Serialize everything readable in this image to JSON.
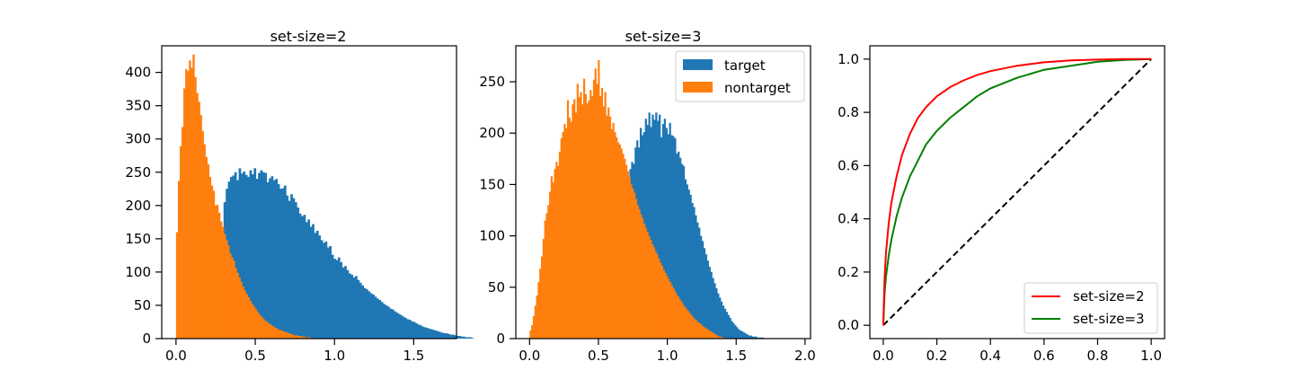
{
  "colors": {
    "target": "#1f77b4",
    "nontarget": "#ff7f0e",
    "roc_set2": "#ff0000",
    "roc_set3": "#008000",
    "chance": "#000000"
  },
  "chart_data": [
    {
      "type": "histogram",
      "title": "set-size=2",
      "xlabel": "",
      "ylabel": "",
      "xlim": [
        -0.09,
        1.77
      ],
      "ylim": [
        0,
        440
      ],
      "xticks": [
        0.0,
        0.5,
        1.0,
        1.5
      ],
      "xtick_labels": [
        "0.0",
        "0.5",
        "1.0",
        "1.5"
      ],
      "yticks": [
        0,
        50,
        100,
        150,
        200,
        250,
        300,
        350,
        400
      ],
      "ytick_labels": [
        "0",
        "50",
        "100",
        "150",
        "200",
        "250",
        "300",
        "350",
        "400"
      ],
      "legend": null,
      "series": [
        {
          "name": "target",
          "bin_start": 0.3,
          "bin_width": 0.0136,
          "values": [
            205,
            225,
            236,
            243,
            245,
            250,
            238,
            256,
            248,
            251,
            246,
            243,
            253,
            247,
            256,
            240,
            249,
            253,
            250,
            249,
            235,
            241,
            244,
            238,
            240,
            232,
            225,
            226,
            230,
            215,
            207,
            217,
            211,
            205,
            197,
            188,
            184,
            186,
            175,
            179,
            168,
            172,
            159,
            162,
            155,
            148,
            144,
            146,
            137,
            139,
            126,
            120,
            118,
            122,
            115,
            107,
            109,
            103,
            98,
            96,
            92,
            94,
            88,
            84,
            80,
            76,
            74,
            71,
            68,
            66,
            63,
            60,
            58,
            55,
            52,
            50,
            48,
            45,
            44,
            41,
            39,
            37,
            35,
            33,
            31,
            29,
            28,
            26,
            25,
            23,
            21,
            20,
            18,
            17,
            16,
            15,
            14,
            13,
            12,
            11,
            10,
            9,
            8,
            8,
            7,
            6,
            6,
            5,
            4,
            4,
            3,
            3,
            2,
            2,
            2,
            1
          ]
        },
        {
          "name": "nontarget",
          "bin_start": 0.0,
          "bin_width": 0.0116,
          "values": [
            160,
            237,
            289,
            318,
            376,
            405,
            402,
            418,
            407,
            427,
            393,
            369,
            356,
            336,
            312,
            292,
            273,
            262,
            243,
            230,
            222,
            200,
            201,
            189,
            176,
            168,
            157,
            148,
            140,
            128,
            122,
            117,
            106,
            99,
            92,
            85,
            78,
            72,
            67,
            62,
            57,
            52,
            48,
            44,
            40,
            36,
            33,
            30,
            27,
            25,
            23,
            21,
            19,
            17,
            16,
            14,
            13,
            12,
            11,
            10,
            9,
            8,
            7,
            6,
            5,
            5,
            4,
            4,
            3,
            3,
            2,
            2,
            2,
            1,
            1
          ]
        }
      ]
    },
    {
      "type": "histogram",
      "title": "set-size=3",
      "xlabel": "",
      "ylabel": "",
      "xlim": [
        -0.1,
        2.04
      ],
      "ylim": [
        0,
        285
      ],
      "xticks": [
        0.0,
        0.5,
        1.0,
        1.5,
        2.0
      ],
      "xtick_labels": [
        "0.0",
        "0.5",
        "1.0",
        "1.5",
        "2.0"
      ],
      "yticks": [
        0,
        50,
        100,
        150,
        200,
        250
      ],
      "ytick_labels": [
        "0",
        "50",
        "100",
        "150",
        "200",
        "250"
      ],
      "legend": {
        "position": "upper right",
        "entries": [
          "target",
          "nontarget"
        ]
      },
      "series": [
        {
          "name": "target",
          "bin_start": 0.7,
          "bin_width": 0.0125,
          "values": [
            150,
            152,
            165,
            172,
            170,
            186,
            193,
            186,
            205,
            198,
            201,
            214,
            208,
            220,
            206,
            218,
            213,
            220,
            212,
            218,
            196,
            209,
            214,
            205,
            199,
            210,
            198,
            197,
            195,
            180,
            182,
            176,
            170,
            168,
            155,
            150,
            145,
            140,
            132,
            128,
            120,
            113,
            108,
            100,
            95,
            88,
            82,
            76,
            70,
            65,
            59,
            54,
            49,
            44,
            40,
            36,
            32,
            29,
            26,
            23,
            20,
            17,
            15,
            13,
            11,
            9,
            8,
            7,
            6,
            5,
            4,
            3,
            3,
            2,
            2,
            2,
            1,
            1,
            1,
            1
          ]
        },
        {
          "name": "nontarget",
          "bin_start": 0.0,
          "bin_width": 0.0118,
          "values": [
            8,
            13,
            22,
            32,
            42,
            55,
            68,
            80,
            97,
            115,
            122,
            130,
            143,
            158,
            152,
            165,
            172,
            168,
            182,
            195,
            201,
            209,
            205,
            232,
            215,
            211,
            228,
            233,
            220,
            248,
            235,
            240,
            228,
            253,
            238,
            229,
            232,
            242,
            236,
            252,
            263,
            248,
            271,
            236,
            244,
            226,
            240,
            217,
            225,
            216,
            204,
            210,
            201,
            196,
            191,
            189,
            185,
            180,
            175,
            169,
            163,
            157,
            150,
            146,
            142,
            136,
            130,
            126,
            121,
            117,
            112,
            108,
            104,
            100,
            96,
            92,
            89,
            85,
            82,
            78,
            74,
            71,
            67,
            64,
            61,
            58,
            55,
            52,
            49,
            46,
            43,
            41,
            38,
            36,
            33,
            31,
            29,
            27,
            25,
            23,
            21,
            19,
            18,
            16,
            15,
            14,
            12,
            11,
            10,
            9,
            8,
            7,
            6,
            5,
            4,
            3,
            2,
            2,
            1,
            1
          ]
        }
      ]
    },
    {
      "type": "line",
      "title": "",
      "xlabel": "",
      "ylabel": "",
      "xlim": [
        -0.05,
        1.05
      ],
      "ylim": [
        -0.05,
        1.05
      ],
      "xticks": [
        0.0,
        0.2,
        0.4,
        0.6,
        0.8,
        1.0
      ],
      "xtick_labels": [
        "0.0",
        "0.2",
        "0.4",
        "0.6",
        "0.8",
        "1.0"
      ],
      "yticks": [
        0.0,
        0.2,
        0.4,
        0.6,
        0.8,
        1.0
      ],
      "ytick_labels": [
        "0.0",
        "0.2",
        "0.4",
        "0.6",
        "0.8",
        "1.0"
      ],
      "legend": {
        "position": "lower right",
        "entries": [
          "set-size=2",
          "set-size=3"
        ]
      },
      "series": [
        {
          "name": "set-size=2",
          "x": [
            0.0,
            0.005,
            0.01,
            0.02,
            0.03,
            0.05,
            0.07,
            0.1,
            0.13,
            0.16,
            0.2,
            0.25,
            0.3,
            0.35,
            0.4,
            0.5,
            0.6,
            0.7,
            0.8,
            0.9,
            1.0
          ],
          "y": [
            0.0,
            0.18,
            0.27,
            0.38,
            0.46,
            0.56,
            0.64,
            0.72,
            0.78,
            0.82,
            0.86,
            0.895,
            0.92,
            0.94,
            0.955,
            0.975,
            0.988,
            0.995,
            0.998,
            1.0,
            1.0
          ]
        },
        {
          "name": "set-size=3",
          "x": [
            0.0,
            0.005,
            0.01,
            0.02,
            0.03,
            0.05,
            0.07,
            0.1,
            0.13,
            0.16,
            0.2,
            0.25,
            0.3,
            0.35,
            0.4,
            0.5,
            0.6,
            0.7,
            0.8,
            0.9,
            1.0
          ],
          "y": [
            0.0,
            0.12,
            0.18,
            0.26,
            0.32,
            0.41,
            0.48,
            0.56,
            0.62,
            0.68,
            0.73,
            0.78,
            0.82,
            0.86,
            0.89,
            0.93,
            0.96,
            0.975,
            0.99,
            0.997,
            1.0
          ]
        },
        {
          "name": "",
          "style": "dashed",
          "x": [
            0.0,
            1.0
          ],
          "y": [
            0.0,
            1.0
          ]
        }
      ]
    }
  ]
}
